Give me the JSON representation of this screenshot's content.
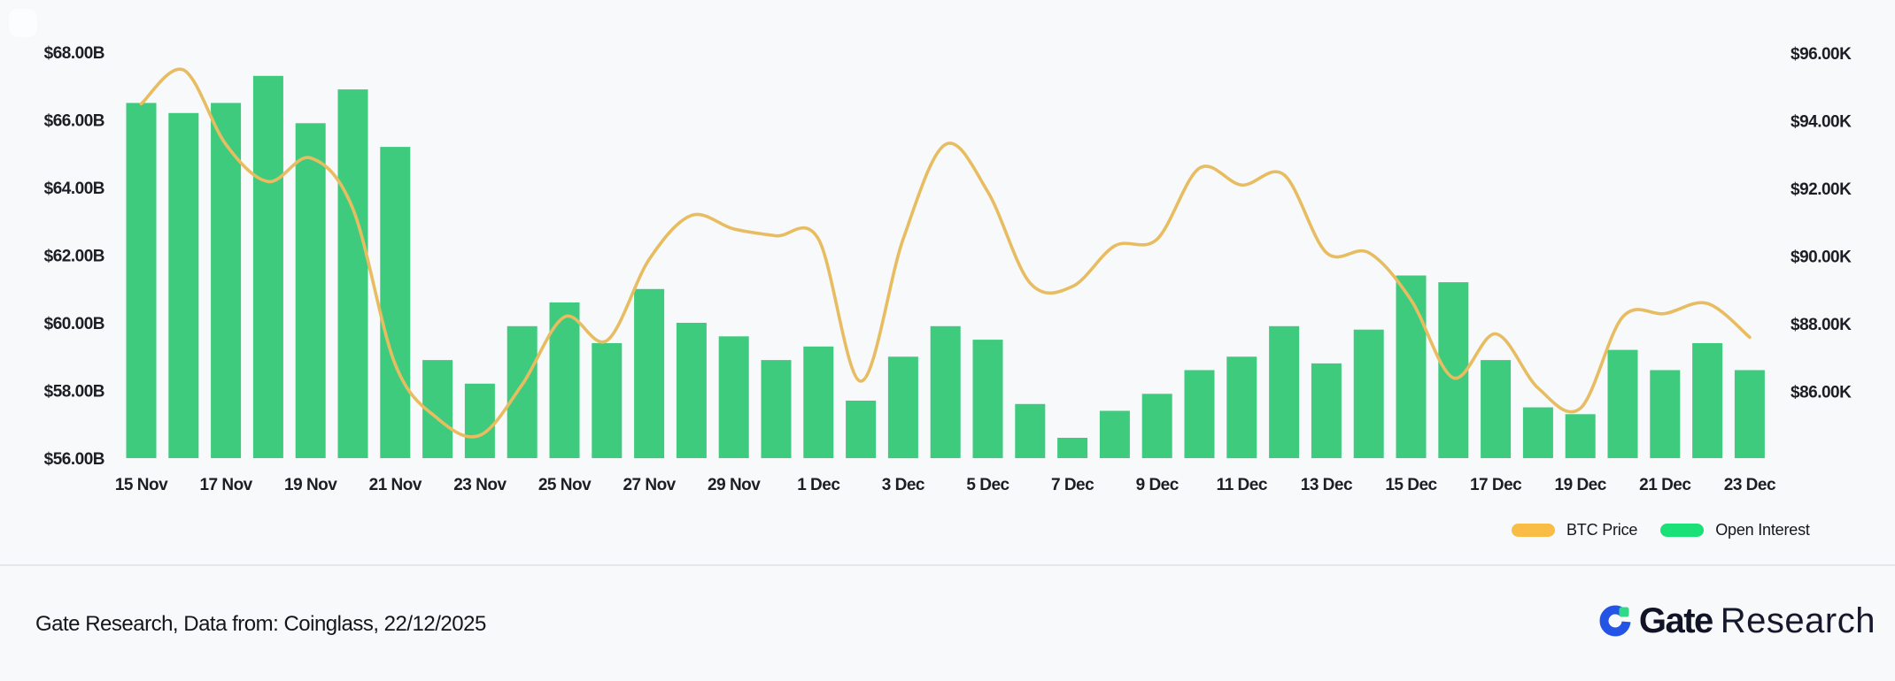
{
  "chart_data": {
    "type": "combo-bar-line",
    "categories": [
      "15 Nov",
      "16 Nov",
      "17 Nov",
      "18 Nov",
      "19 Nov",
      "20 Nov",
      "21 Nov",
      "22 Nov",
      "23 Nov",
      "24 Nov",
      "25 Nov",
      "26 Nov",
      "27 Nov",
      "28 Nov",
      "29 Nov",
      "30 Nov",
      "1 Dec",
      "2 Dec",
      "3 Dec",
      "4 Dec",
      "5 Dec",
      "6 Dec",
      "7 Dec",
      "8 Dec",
      "9 Dec",
      "10 Dec",
      "11 Dec",
      "12 Dec",
      "13 Dec",
      "14 Dec",
      "15 Dec",
      "16 Dec",
      "17 Dec",
      "18 Dec",
      "19 Dec",
      "20 Dec",
      "21 Dec",
      "22 Dec",
      "23 Dec"
    ],
    "x_tick_step": 2,
    "series": [
      {
        "name": "Open Interest",
        "type": "bar",
        "axis": "left",
        "unit": "USD billions",
        "values": [
          66.5,
          66.2,
          66.5,
          67.3,
          65.9,
          66.9,
          65.2,
          58.9,
          58.2,
          59.9,
          60.6,
          59.4,
          61.0,
          60.0,
          59.6,
          58.9,
          59.3,
          57.7,
          59.0,
          59.9,
          59.5,
          57.6,
          56.6,
          57.4,
          57.9,
          58.6,
          59.0,
          59.9,
          58.8,
          59.8,
          61.4,
          61.2,
          58.9,
          57.5,
          57.3,
          59.2,
          58.6,
          59.4,
          58.6
        ]
      },
      {
        "name": "BTC Price",
        "type": "line",
        "axis": "right",
        "unit": "USD thousands",
        "values": [
          94.5,
          95.5,
          93.3,
          92.2,
          92.9,
          91.4,
          86.8,
          85.2,
          84.7,
          86.2,
          88.2,
          87.5,
          89.9,
          91.2,
          90.8,
          90.6,
          90.5,
          86.3,
          90.5,
          93.3,
          91.9,
          89.2,
          89.1,
          90.3,
          90.5,
          92.6,
          92.1,
          92.4,
          90.1,
          90.1,
          88.7,
          86.4,
          87.7,
          86.1,
          85.5,
          88.2,
          88.3,
          88.6,
          87.6
        ]
      }
    ],
    "left_axis": {
      "tick_values": [
        68,
        66,
        64,
        62,
        60,
        58,
        56
      ],
      "tick_labels": [
        "$68.00B",
        "$66.00B",
        "$64.00B",
        "$62.00B",
        "$60.00B",
        "$58.00B",
        "$56.00B"
      ],
      "range_min": 56,
      "range_max": 68
    },
    "right_axis": {
      "tick_values": [
        96,
        94,
        92,
        90,
        88,
        86
      ],
      "tick_labels": [
        "$96.00K",
        "$94.00K",
        "$92.00K",
        "$90.00K",
        "$88.00K",
        "$86.00K"
      ],
      "label_min": 86,
      "label_max": 96
    },
    "grid": "off",
    "legend_position": "bottom-right"
  },
  "legend": {
    "items": [
      {
        "label": "BTC Price",
        "color": "#F9BD45"
      },
      {
        "label": "Open Interest",
        "color": "#19E077"
      }
    ]
  },
  "footer": {
    "source_text": "Gate Research, Data from: Coinglass, 22/12/2025",
    "logo_gate": "Gate",
    "logo_research": "Research"
  },
  "colors": {
    "background": "#F7F9FB",
    "bar_fill": "#3FCB7E",
    "line_stroke": "#E8BC60",
    "tick_text": "#1B1E24",
    "divider": "#E4E6E9",
    "logo_blue": "#2354E5",
    "logo_green": "#2ED987",
    "logo_navy": "#111427"
  }
}
